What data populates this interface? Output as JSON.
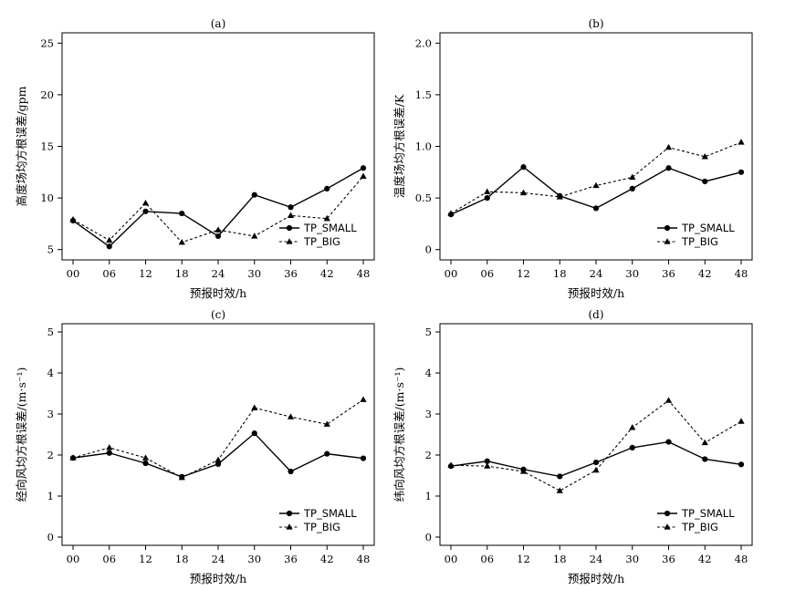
{
  "figure": {
    "legend_labels": [
      "TP_SMALL",
      "TP_BIG"
    ]
  },
  "chart_data": [
    {
      "type": "line",
      "title": "(a)",
      "xlabel": "预报时效/h",
      "ylabel": "高度场均方根误差/gpm",
      "categories": [
        "00",
        "06",
        "12",
        "18",
        "24",
        "30",
        "36",
        "42",
        "48"
      ],
      "ylim": [
        4,
        26
      ],
      "yticks": [
        5,
        10,
        15,
        20,
        25
      ],
      "ytick_labels": [
        "5",
        "10",
        "15",
        "20",
        "25"
      ],
      "legend": "bottom-right",
      "grid": false,
      "series": [
        {
          "name": "TP_SMALL",
          "style": "solid",
          "marker": "circle",
          "values": [
            7.8,
            5.3,
            8.7,
            8.5,
            6.3,
            10.3,
            9.1,
            10.9,
            12.9
          ]
        },
        {
          "name": "TP_BIG",
          "style": "dashed",
          "marker": "triangle",
          "values": [
            7.9,
            5.9,
            9.5,
            5.7,
            6.9,
            6.3,
            8.3,
            8.0,
            12.1
          ]
        }
      ]
    },
    {
      "type": "line",
      "title": "(b)",
      "xlabel": "预报时效/h",
      "ylabel": "温度场均方根误差/K",
      "categories": [
        "00",
        "06",
        "12",
        "18",
        "24",
        "30",
        "36",
        "42",
        "48"
      ],
      "ylim": [
        -0.1,
        2.1
      ],
      "yticks": [
        0,
        0.5,
        1,
        1.5,
        2
      ],
      "ytick_labels": [
        "0",
        "0.5",
        "1.0",
        "1.5",
        "2.0"
      ],
      "legend": "bottom-right",
      "grid": false,
      "series": [
        {
          "name": "TP_SMALL",
          "style": "solid",
          "marker": "circle",
          "values": [
            0.34,
            0.5,
            0.8,
            0.52,
            0.4,
            0.59,
            0.79,
            0.66,
            0.75
          ]
        },
        {
          "name": "TP_BIG",
          "style": "dashed",
          "marker": "triangle",
          "values": [
            0.35,
            0.56,
            0.55,
            0.51,
            0.62,
            0.7,
            0.99,
            0.9,
            1.04
          ]
        }
      ]
    },
    {
      "type": "line",
      "title": "(c)",
      "xlabel": "预报时效/h",
      "ylabel": "经向风均方根误差/(m·s⁻¹)",
      "categories": [
        "00",
        "06",
        "12",
        "18",
        "24",
        "30",
        "36",
        "42",
        "48"
      ],
      "ylim": [
        -0.2,
        5.2
      ],
      "yticks": [
        0,
        1,
        2,
        3,
        4,
        5
      ],
      "ytick_labels": [
        "0",
        "1",
        "2",
        "3",
        "4",
        "5"
      ],
      "legend": "bottom-right",
      "grid": false,
      "series": [
        {
          "name": "TP_SMALL",
          "style": "solid",
          "marker": "circle",
          "values": [
            1.93,
            2.05,
            1.8,
            1.47,
            1.78,
            2.53,
            1.6,
            2.03,
            1.92
          ]
        },
        {
          "name": "TP_BIG",
          "style": "dashed",
          "marker": "triangle",
          "values": [
            1.93,
            2.18,
            1.93,
            1.45,
            1.88,
            3.15,
            2.93,
            2.75,
            3.35
          ]
        }
      ]
    },
    {
      "type": "line",
      "title": "(d)",
      "xlabel": "预报时效/h",
      "ylabel": "纬向风均方根误差/(m·s⁻¹)",
      "categories": [
        "00",
        "06",
        "12",
        "18",
        "24",
        "30",
        "36",
        "42",
        "48"
      ],
      "ylim": [
        -0.2,
        5.2
      ],
      "yticks": [
        0,
        1,
        2,
        3,
        4,
        5
      ],
      "ytick_labels": [
        "0",
        "1",
        "2",
        "3",
        "4",
        "5"
      ],
      "legend": "bottom-right",
      "grid": false,
      "series": [
        {
          "name": "TP_SMALL",
          "style": "solid",
          "marker": "circle",
          "values": [
            1.73,
            1.85,
            1.65,
            1.48,
            1.82,
            2.18,
            2.32,
            1.9,
            1.77
          ]
        },
        {
          "name": "TP_BIG",
          "style": "dashed",
          "marker": "triangle",
          "values": [
            1.75,
            1.73,
            1.6,
            1.13,
            1.63,
            2.67,
            3.33,
            2.3,
            2.82
          ]
        }
      ]
    }
  ]
}
